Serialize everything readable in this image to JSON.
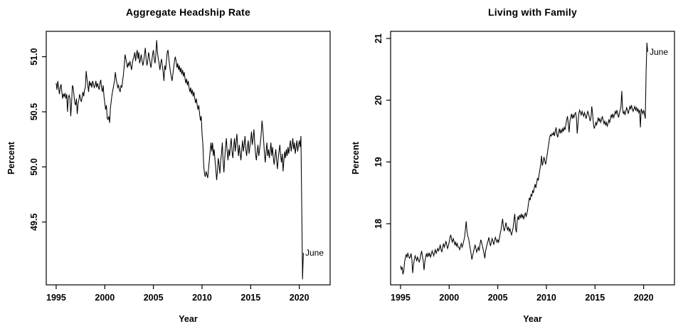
{
  "figure": {
    "background": "#ffffff",
    "line_color": "#000000",
    "text_color": "#000000"
  },
  "chart_data": [
    {
      "type": "line",
      "title": "Aggregate Headship Rate",
      "xlabel": "Year",
      "ylabel": "Percent",
      "series_name": "aggregate-headship-rate-monthly",
      "line_color": "#000000",
      "grid": false,
      "legend": "none",
      "x_start_year": 1995,
      "x_points_per_year": 12,
      "x_last_point": "June 2020",
      "xlim": [
        1993.98,
        2023.17
      ],
      "ylim": [
        48.93,
        51.23
      ],
      "xticks": [
        1995,
        2000,
        2005,
        2010,
        2015,
        2020
      ],
      "xtick_labels": [
        "1995",
        "2000",
        "2005",
        "2010",
        "2015",
        "2020"
      ],
      "yticks": [
        49.5,
        50.0,
        50.5,
        51.0
      ],
      "ytick_labels": [
        "49.5",
        "50.0",
        "50.5",
        "51.0"
      ],
      "annotation": {
        "label": "June",
        "x": 2020.417,
        "y": 49.22
      },
      "values": [
        50.76,
        50.7,
        50.78,
        50.72,
        50.66,
        50.72,
        50.75,
        50.68,
        50.62,
        50.66,
        50.64,
        50.67,
        50.62,
        50.66,
        50.5,
        50.63,
        50.65,
        50.62,
        50.46,
        50.58,
        50.74,
        50.72,
        50.65,
        50.58,
        50.56,
        50.62,
        50.48,
        50.57,
        50.61,
        50.66,
        50.62,
        50.59,
        50.63,
        50.68,
        50.64,
        50.7,
        50.72,
        50.87,
        50.8,
        50.74,
        50.68,
        50.78,
        50.74,
        50.76,
        50.72,
        50.78,
        50.75,
        50.72,
        50.74,
        50.78,
        50.72,
        50.76,
        50.73,
        50.7,
        50.76,
        50.79,
        50.72,
        50.68,
        50.74,
        50.64,
        50.58,
        50.52,
        50.56,
        50.44,
        50.43,
        50.46,
        50.4,
        50.54,
        50.6,
        50.66,
        50.7,
        50.74,
        50.78,
        50.86,
        50.8,
        50.76,
        50.72,
        50.74,
        50.7,
        50.68,
        50.74,
        50.72,
        50.78,
        50.84,
        50.92,
        51.02,
        50.98,
        50.94,
        50.9,
        50.94,
        50.92,
        50.96,
        50.92,
        50.88,
        50.94,
        50.98,
        51.0,
        51.04,
        50.96,
        51.02,
        51.06,
        50.98,
        51.04,
        50.94,
        50.98,
        51.02,
        50.96,
        50.92,
        50.96,
        51.02,
        51.08,
        50.98,
        50.92,
        50.96,
        51.04,
        51.0,
        50.94,
        50.9,
        50.96,
        51.02,
        51.06,
        50.98,
        50.94,
        51.02,
        51.15,
        51.04,
        50.98,
        50.94,
        50.88,
        50.94,
        50.98,
        50.92,
        50.86,
        50.78,
        50.92,
        50.88,
        50.96,
        51.04,
        51.06,
        50.98,
        50.92,
        50.86,
        50.82,
        50.78,
        50.84,
        50.9,
        50.96,
        51.0,
        50.96,
        50.9,
        50.94,
        50.88,
        50.92,
        50.86,
        50.9,
        50.84,
        50.88,
        50.82,
        50.86,
        50.8,
        50.76,
        50.8,
        50.74,
        50.78,
        50.72,
        50.68,
        50.72,
        50.66,
        50.7,
        50.64,
        50.68,
        50.62,
        50.58,
        50.62,
        50.56,
        50.52,
        50.56,
        50.48,
        50.42,
        50.46,
        50.3,
        50.21,
        50.02,
        49.94,
        49.91,
        49.96,
        49.93,
        49.9,
        49.98,
        50.06,
        50.14,
        50.22,
        50.14,
        50.22,
        50.1,
        50.16,
        50.06,
        49.98,
        49.88,
        49.96,
        50.08,
        50.02,
        49.94,
        50.06,
        50.12,
        50.22,
        50.05,
        49.95,
        50.08,
        50.18,
        50.26,
        50.14,
        50.06,
        50.16,
        50.1,
        50.2,
        50.26,
        50.14,
        50.08,
        50.18,
        50.26,
        50.14,
        50.22,
        50.3,
        50.18,
        50.1,
        50.2,
        50.12,
        50.06,
        50.16,
        50.24,
        50.14,
        50.2,
        50.28,
        50.16,
        50.1,
        50.18,
        50.24,
        50.12,
        50.18,
        50.24,
        50.32,
        50.2,
        50.26,
        50.34,
        50.22,
        50.12,
        50.06,
        50.14,
        50.2,
        50.1,
        50.16,
        50.22,
        50.3,
        50.42,
        50.34,
        50.24,
        50.12,
        50.04,
        50.14,
        50.22,
        50.1,
        50.16,
        50.08,
        50.14,
        50.22,
        50.1,
        50.18,
        50.08,
        50.02,
        50.1,
        50.16,
        50.06,
        49.98,
        50.08,
        50.14,
        50.2,
        50.1,
        50.04,
        50.12,
        49.96,
        50.06,
        50.14,
        50.08,
        50.16,
        50.1,
        50.18,
        50.12,
        50.18,
        50.24,
        50.14,
        50.2,
        50.26,
        50.16,
        50.22,
        50.12,
        50.18,
        50.24,
        50.14,
        50.2,
        50.24,
        50.18,
        50.28,
        49.65,
        48.98,
        49.22
      ]
    },
    {
      "type": "line",
      "title": "Living with Family",
      "xlabel": "Year",
      "ylabel": "Percent",
      "series_name": "living-with-family-monthly",
      "line_color": "#000000",
      "grid": false,
      "legend": "none",
      "x_start_year": 1995,
      "x_points_per_year": 12,
      "x_last_point": "June 2020",
      "xlim": [
        1993.98,
        2023.17
      ],
      "ylim": [
        17.01,
        21.115
      ],
      "xticks": [
        1995,
        2000,
        2005,
        2010,
        2015,
        2020
      ],
      "xtick_labels": [
        "1995",
        "2000",
        "2005",
        "2010",
        "2015",
        "2020"
      ],
      "yticks": [
        18,
        19,
        20,
        21
      ],
      "ytick_labels": [
        "18",
        "19",
        "20",
        "21"
      ],
      "annotation": {
        "label": "June",
        "x": 2020.417,
        "y": 20.78
      },
      "values": [
        17.32,
        17.26,
        17.3,
        17.18,
        17.24,
        17.38,
        17.45,
        17.5,
        17.46,
        17.52,
        17.48,
        17.44,
        17.46,
        17.52,
        17.42,
        17.2,
        17.34,
        17.42,
        17.48,
        17.44,
        17.4,
        17.46,
        17.42,
        17.38,
        17.42,
        17.5,
        17.56,
        17.48,
        17.4,
        17.25,
        17.38,
        17.46,
        17.52,
        17.46,
        17.52,
        17.48,
        17.52,
        17.46,
        17.5,
        17.56,
        17.52,
        17.48,
        17.54,
        17.58,
        17.52,
        17.56,
        17.6,
        17.56,
        17.6,
        17.66,
        17.58,
        17.54,
        17.62,
        17.68,
        17.62,
        17.66,
        17.72,
        17.66,
        17.6,
        17.64,
        17.7,
        17.78,
        17.82,
        17.74,
        17.7,
        17.76,
        17.72,
        17.66,
        17.7,
        17.64,
        17.68,
        17.62,
        17.62,
        17.58,
        17.64,
        17.68,
        17.62,
        17.66,
        17.72,
        17.78,
        17.9,
        18.04,
        17.88,
        17.8,
        17.76,
        17.68,
        17.6,
        17.52,
        17.42,
        17.48,
        17.54,
        17.6,
        17.66,
        17.6,
        17.54,
        17.58,
        17.62,
        17.56,
        17.66,
        17.74,
        17.7,
        17.64,
        17.58,
        17.52,
        17.44,
        17.56,
        17.62,
        17.68,
        17.72,
        17.78,
        17.7,
        17.64,
        17.7,
        17.76,
        17.72,
        17.66,
        17.72,
        17.78,
        17.74,
        17.7,
        17.74,
        17.7,
        17.76,
        17.84,
        17.9,
        18.0,
        18.08,
        17.94,
        17.88,
        17.94,
        18.02,
        17.96,
        17.9,
        17.94,
        17.88,
        17.92,
        17.86,
        17.82,
        17.88,
        17.94,
        18.06,
        18.16,
        17.92,
        17.86,
        18.05,
        18.12,
        18.06,
        18.14,
        18.1,
        18.16,
        18.1,
        18.14,
        18.08,
        18.12,
        18.18,
        18.12,
        18.16,
        18.24,
        18.34,
        18.42,
        18.38,
        18.48,
        18.44,
        18.54,
        18.5,
        18.58,
        18.64,
        18.58,
        18.66,
        18.74,
        18.7,
        18.8,
        18.88,
        18.96,
        19.1,
        18.94,
        19.0,
        19.08,
        19.02,
        18.96,
        19.04,
        19.12,
        19.22,
        19.3,
        19.4,
        19.44,
        19.42,
        19.46,
        19.44,
        19.48,
        19.42,
        19.5,
        19.56,
        19.44,
        19.4,
        19.48,
        19.54,
        19.46,
        19.52,
        19.48,
        19.54,
        19.5,
        19.56,
        19.52,
        19.6,
        19.68,
        19.74,
        19.62,
        19.48,
        19.66,
        19.72,
        19.78,
        19.7,
        19.76,
        19.72,
        19.78,
        19.8,
        19.72,
        19.46,
        19.62,
        19.78,
        19.84,
        19.8,
        19.76,
        19.82,
        19.78,
        19.74,
        19.8,
        19.76,
        19.7,
        19.76,
        19.82,
        19.78,
        19.72,
        19.66,
        19.72,
        19.9,
        19.78,
        19.62,
        19.54,
        19.58,
        19.64,
        19.6,
        19.66,
        19.72,
        19.66,
        19.7,
        19.64,
        19.68,
        19.74,
        19.68,
        19.62,
        19.66,
        19.6,
        19.64,
        19.58,
        19.62,
        19.68,
        19.64,
        19.7,
        19.76,
        19.72,
        19.78,
        19.72,
        19.76,
        19.82,
        19.78,
        19.84,
        19.78,
        19.72,
        19.78,
        19.84,
        19.9,
        20.15,
        19.86,
        19.78,
        19.82,
        19.76,
        19.82,
        19.88,
        19.84,
        19.78,
        19.84,
        19.9,
        19.86,
        19.92,
        19.86,
        19.82,
        19.86,
        19.9,
        19.84,
        19.88,
        19.82,
        19.86,
        19.8,
        19.84,
        19.56,
        19.86,
        19.82,
        19.78,
        19.84,
        19.78,
        19.7,
        20.45,
        20.93,
        20.78
      ]
    }
  ]
}
